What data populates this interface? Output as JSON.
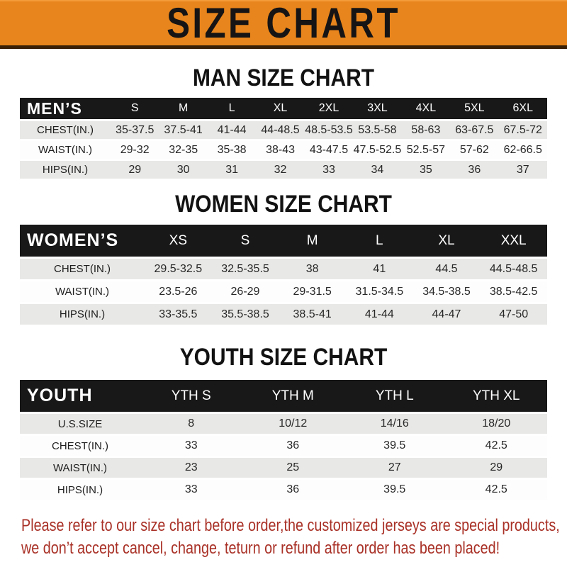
{
  "banner": {
    "title": "SIZE CHART",
    "background_color": "#E8851C",
    "text_color": "#161414"
  },
  "sections": [
    {
      "id": "men",
      "heading": "MAN SIZE CHART",
      "header_label": "MEN’S",
      "columns": [
        "S",
        "M",
        "L",
        "XL",
        "2XL",
        "3XL",
        "4XL",
        "5XL",
        "6XL"
      ],
      "rows": [
        {
          "label": "CHEST(IN.)",
          "values": [
            "35-37.5",
            "37.5-41",
            "41-44",
            "44-48.5",
            "48.5-53.5",
            "53.5-58",
            "58-63",
            "63-67.5",
            "67.5-72"
          ]
        },
        {
          "label": "WAIST(IN.)",
          "values": [
            "29-32",
            "32-35",
            "35-38",
            "38-43",
            "43-47.5",
            "47.5-52.5",
            "52.5-57",
            "57-62",
            "62-66.5"
          ]
        },
        {
          "label": "HIPS(IN.)",
          "values": [
            "29",
            "30",
            "31",
            "32",
            "33",
            "34",
            "35",
            "36",
            "37"
          ]
        }
      ]
    },
    {
      "id": "women",
      "heading": "WOMEN SIZE CHART",
      "header_label": "WOMEN’S",
      "columns": [
        "XS",
        "S",
        "M",
        "L",
        "XL",
        "XXL"
      ],
      "rows": [
        {
          "label": "CHEST(IN.)",
          "values": [
            "29.5-32.5",
            "32.5-35.5",
            "38",
            "41",
            "44.5",
            "44.5-48.5"
          ]
        },
        {
          "label": "WAIST(IN.)",
          "values": [
            "23.5-26",
            "26-29",
            "29-31.5",
            "31.5-34.5",
            "34.5-38.5",
            "38.5-42.5"
          ]
        },
        {
          "label": "HIPS(IN.)",
          "values": [
            "33-35.5",
            "35.5-38.5",
            "38.5-41",
            "41-44",
            "44-47",
            "47-50"
          ]
        }
      ]
    },
    {
      "id": "youth",
      "heading": "YOUTH SIZE CHART",
      "header_label": "YOUTH",
      "columns": [
        "YTH S",
        "YTH M",
        "YTH L",
        "YTH XL"
      ],
      "rows": [
        {
          "label": "U.S.SIZE",
          "values": [
            "8",
            "10/12",
            "14/16",
            "18/20"
          ]
        },
        {
          "label": "CHEST(IN.)",
          "values": [
            "33",
            "36",
            "39.5",
            "42.5"
          ]
        },
        {
          "label": "WAIST(IN.)",
          "values": [
            "23",
            "25",
            "27",
            "29"
          ]
        },
        {
          "label": "HIPS(IN.)",
          "values": [
            "33",
            "36",
            "39.5",
            "42.5"
          ]
        }
      ]
    }
  ],
  "footer": {
    "line1": "Please refer to our size chart before order,the customized jerseys are special products,",
    "line2": "we don’t accept cancel, change, teturn or refund after order has been placed!",
    "text_color": "#A93127"
  },
  "chart_data": [
    {
      "type": "table",
      "title": "MAN SIZE CHART",
      "columns": [
        "MEN’S",
        "S",
        "M",
        "L",
        "XL",
        "2XL",
        "3XL",
        "4XL",
        "5XL",
        "6XL"
      ],
      "rows": [
        [
          "CHEST(IN.)",
          "35-37.5",
          "37.5-41",
          "41-44",
          "44-48.5",
          "48.5-53.5",
          "53.5-58",
          "58-63",
          "63-67.5",
          "67.5-72"
        ],
        [
          "WAIST(IN.)",
          "29-32",
          "32-35",
          "35-38",
          "38-43",
          "43-47.5",
          "47.5-52.5",
          "52.5-57",
          "57-62",
          "62-66.5"
        ],
        [
          "HIPS(IN.)",
          "29",
          "30",
          "31",
          "32",
          "33",
          "34",
          "35",
          "36",
          "37"
        ]
      ]
    },
    {
      "type": "table",
      "title": "WOMEN SIZE CHART",
      "columns": [
        "WOMEN’S",
        "XS",
        "S",
        "M",
        "L",
        "XL",
        "XXL"
      ],
      "rows": [
        [
          "CHEST(IN.)",
          "29.5-32.5",
          "32.5-35.5",
          "38",
          "41",
          "44.5",
          "44.5-48.5"
        ],
        [
          "WAIST(IN.)",
          "23.5-26",
          "26-29",
          "29-31.5",
          "31.5-34.5",
          "34.5-38.5",
          "38.5-42.5"
        ],
        [
          "HIPS(IN.)",
          "33-35.5",
          "35.5-38.5",
          "38.5-41",
          "41-44",
          "44-47",
          "47-50"
        ]
      ]
    },
    {
      "type": "table",
      "title": "YOUTH SIZE CHART",
      "columns": [
        "YOUTH",
        "YTH S",
        "YTH M",
        "YTH L",
        "YTH XL"
      ],
      "rows": [
        [
          "U.S.SIZE",
          "8",
          "10/12",
          "14/16",
          "18/20"
        ],
        [
          "CHEST(IN.)",
          "33",
          "36",
          "39.5",
          "42.5"
        ],
        [
          "WAIST(IN.)",
          "23",
          "25",
          "27",
          "29"
        ],
        [
          "HIPS(IN.)",
          "33",
          "36",
          "39.5",
          "42.5"
        ]
      ]
    }
  ]
}
